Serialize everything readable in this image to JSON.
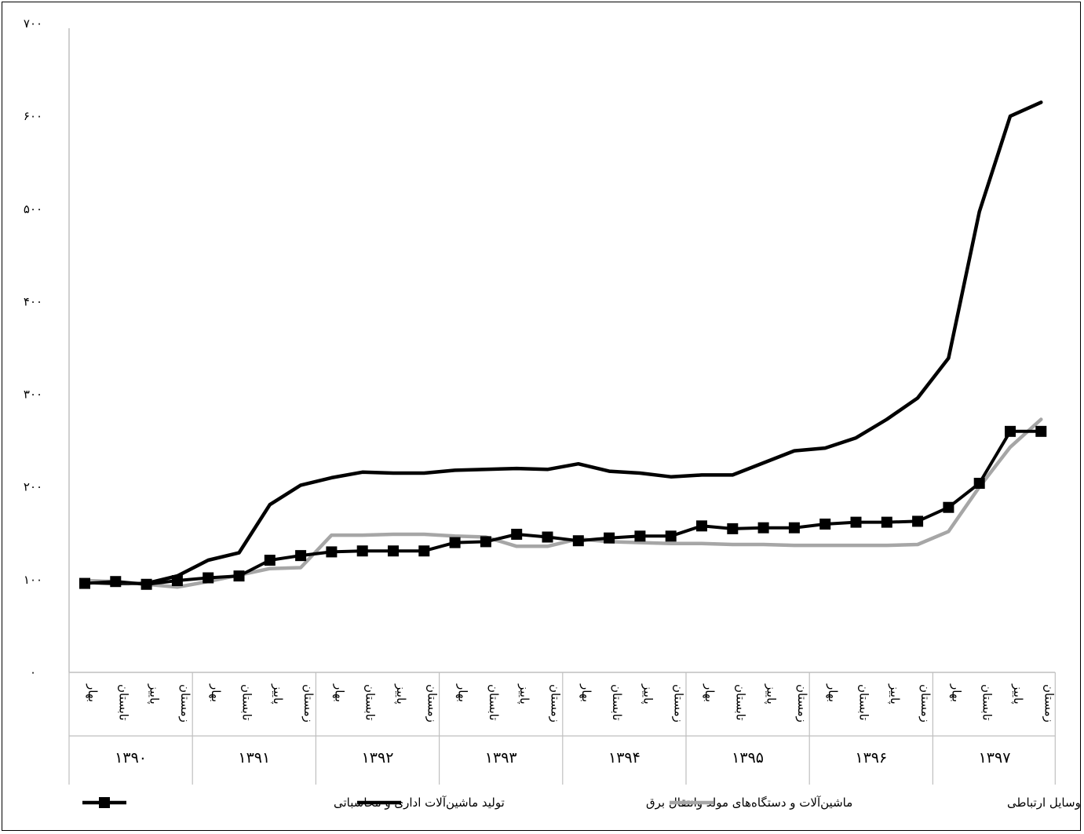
{
  "chart_data": {
    "type": "line",
    "title": "",
    "xlabel": "",
    "ylabel": "",
    "ylim": [
      0,
      700
    ],
    "yticks": [
      0,
      100,
      200,
      300,
      400,
      500,
      600,
      700
    ],
    "ytick_labels": [
      "۰",
      "۱۰۰",
      "۲۰۰",
      "۳۰۰",
      "۴۰۰",
      "۵۰۰",
      "۶۰۰",
      "۷۰۰"
    ],
    "grid": false,
    "legend_position": "bottom",
    "seasons": [
      "بهار",
      "تابستان",
      "پاییز",
      "زمستان"
    ],
    "years": [
      "۱۳۹۰",
      "۱۳۹۱",
      "۱۳۹۲",
      "۱۳۹۳",
      "۱۳۹۴",
      "۱۳۹۵",
      "۱۳۹۶",
      "۱۳۹۷"
    ],
    "series": [
      {
        "name": "تولید ماشین‌آلات اداری و محاسباتی",
        "color": "#000000",
        "style": "line-with-square-markers",
        "values": [
          96,
          98,
          95,
          99,
          102,
          104,
          121,
          126,
          130,
          131,
          131,
          131,
          140,
          141,
          149,
          146,
          142,
          145,
          147,
          147,
          158,
          155,
          156,
          156,
          160,
          162,
          162,
          163,
          178,
          204,
          260,
          260
        ]
      },
      {
        "name": "ماشین‌آلات و دستگاه‌های مولد وانتقال برق",
        "color": "#000000",
        "style": "thick-line",
        "values": [
          97,
          96,
          96,
          104,
          121,
          129,
          181,
          202,
          210,
          216,
          215,
          215,
          218,
          219,
          220,
          219,
          225,
          217,
          215,
          211,
          213,
          213,
          226,
          239,
          242,
          253,
          273,
          296,
          339,
          497,
          600,
          615
        ]
      },
      {
        "name": "تولید رادیو و تلویزیون و دستگاه‌ها و وسایل ارتباطی",
        "color": "#a6a6a6",
        "style": "thick-line",
        "values": [
          99,
          98,
          95,
          92,
          98,
          105,
          112,
          113,
          148,
          148,
          149,
          149,
          147,
          146,
          136,
          136,
          144,
          141,
          140,
          139,
          139,
          138,
          138,
          137,
          137,
          137,
          137,
          138,
          152,
          200,
          243,
          273
        ]
      }
    ]
  }
}
